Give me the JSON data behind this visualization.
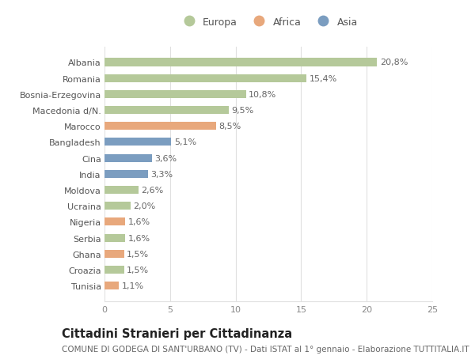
{
  "countries": [
    "Albania",
    "Romania",
    "Bosnia-Erzegovina",
    "Macedonia d/N.",
    "Marocco",
    "Bangladesh",
    "Cina",
    "India",
    "Moldova",
    "Ucraina",
    "Nigeria",
    "Serbia",
    "Ghana",
    "Croazia",
    "Tunisia"
  ],
  "values": [
    20.8,
    15.4,
    10.8,
    9.5,
    8.5,
    5.1,
    3.6,
    3.3,
    2.6,
    2.0,
    1.6,
    1.6,
    1.5,
    1.5,
    1.1
  ],
  "labels": [
    "20,8%",
    "15,4%",
    "10,8%",
    "9,5%",
    "8,5%",
    "5,1%",
    "3,6%",
    "3,3%",
    "2,6%",
    "2,0%",
    "1,6%",
    "1,6%",
    "1,5%",
    "1,5%",
    "1,1%"
  ],
  "continents": [
    "Europa",
    "Europa",
    "Europa",
    "Europa",
    "Africa",
    "Asia",
    "Asia",
    "Asia",
    "Europa",
    "Europa",
    "Africa",
    "Europa",
    "Africa",
    "Europa",
    "Africa"
  ],
  "colors": {
    "Europa": "#b5c99a",
    "Africa": "#e8a87c",
    "Asia": "#7b9dc0"
  },
  "xlim": [
    0,
    25
  ],
  "xticks": [
    0,
    5,
    10,
    15,
    20,
    25
  ],
  "background_color": "#ffffff",
  "grid_color": "#e0e0e0",
  "title": "Cittadini Stranieri per Cittadinanza",
  "subtitle": "COMUNE DI GODEGA DI SANT'URBANO (TV) - Dati ISTAT al 1° gennaio - Elaborazione TUTTITALIA.IT",
  "title_fontsize": 10.5,
  "subtitle_fontsize": 7.5,
  "label_fontsize": 8,
  "tick_fontsize": 8,
  "bar_height": 0.5
}
